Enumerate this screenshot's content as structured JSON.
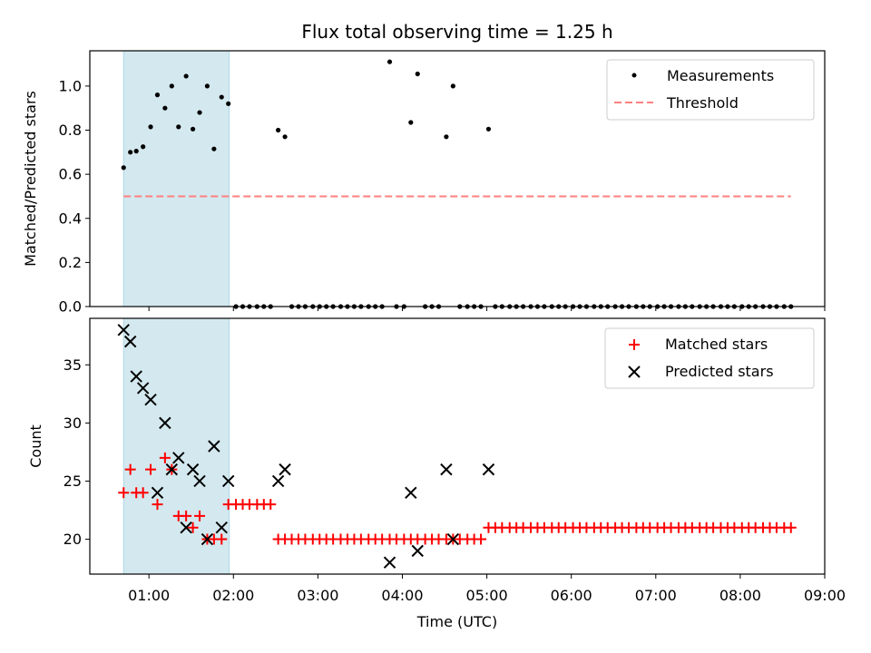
{
  "chart_data": [
    {
      "type": "scatter",
      "title": "Flux total observing time = 1.25 h",
      "xlabel": "",
      "ylabel": "Matched/Predicted stars",
      "ylim": [
        0,
        1.16
      ],
      "yticks": [
        0.0,
        0.2,
        0.4,
        0.6,
        0.8,
        1.0
      ],
      "ytick_labels": [
        "0.0",
        "0.2",
        "0.4",
        "0.6",
        "0.8",
        "1.0"
      ],
      "legend_position": "top-right",
      "shaded_span_hours": [
        0.7,
        1.95
      ],
      "shaded_color": "#d3e9ef",
      "series": [
        {
          "name": "Measurements",
          "kind": "points",
          "color": "#000000",
          "x": [
            0.7,
            0.78,
            0.85,
            0.93,
            1.02,
            1.1,
            1.19,
            1.27,
            1.35,
            1.44,
            1.52,
            1.6,
            1.69,
            1.77,
            1.86,
            1.94,
            2.03,
            2.11,
            2.19,
            2.28,
            2.36,
            2.44,
            2.53,
            2.61,
            2.69,
            2.77,
            2.85,
            2.94,
            3.02,
            3.1,
            3.18,
            3.27,
            3.35,
            3.43,
            3.51,
            3.6,
            3.68,
            3.76,
            3.85,
            3.93,
            4.02,
            4.1,
            4.18,
            4.27,
            4.35,
            4.43,
            4.52,
            4.6,
            4.68,
            4.77,
            4.85,
            4.93,
            5.02,
            5.1,
            5.18,
            5.27,
            5.35,
            5.43,
            5.52,
            5.6,
            5.68,
            5.77,
            5.85,
            5.93,
            6.02,
            6.1,
            6.18,
            6.27,
            6.35,
            6.43,
            6.52,
            6.6,
            6.68,
            6.77,
            6.85,
            6.93,
            7.02,
            7.1,
            7.18,
            7.27,
            7.35,
            7.43,
            7.52,
            7.6,
            7.68,
            7.77,
            7.85,
            7.93,
            8.02,
            8.1,
            8.18,
            8.27,
            8.35,
            8.43,
            8.52,
            8.6
          ],
          "y": [
            0.63,
            0.7,
            0.705,
            0.725,
            0.815,
            0.96,
            0.9,
            1.0,
            0.815,
            1.045,
            0.805,
            0.88,
            1.0,
            0.715,
            0.95,
            0.92,
            0,
            0,
            0,
            0,
            0,
            0,
            0.8,
            0.77,
            0,
            0,
            0,
            0,
            0,
            0,
            0,
            0,
            0,
            0,
            0,
            0,
            0,
            0,
            1.11,
            0,
            0,
            0.835,
            1.055,
            0,
            0,
            0,
            0.77,
            1.0,
            0,
            0,
            0,
            0,
            0.805,
            0,
            0,
            0,
            0,
            0,
            0,
            0,
            0,
            0,
            0,
            0,
            0,
            0,
            0,
            0,
            0,
            0,
            0,
            0,
            0,
            0,
            0,
            0,
            0,
            0,
            0,
            0,
            0,
            0,
            0,
            0,
            0,
            0,
            0,
            0,
            0,
            0,
            0,
            0,
            0,
            0,
            0,
            0
          ]
        },
        {
          "name": "Threshold",
          "kind": "dashed-line",
          "color": "#ff7f7f",
          "x": [
            0.7,
            8.6
          ],
          "y": [
            0.5,
            0.5
          ]
        }
      ]
    },
    {
      "type": "scatter",
      "title": "",
      "xlabel": "Time (UTC)",
      "ylabel": "Count",
      "xlim_hours": [
        0.3,
        9.0
      ],
      "xticks_hours": [
        1,
        2,
        3,
        4,
        5,
        6,
        7,
        8,
        9
      ],
      "xtick_labels": [
        "01:00",
        "02:00",
        "03:00",
        "04:00",
        "05:00",
        "06:00",
        "07:00",
        "08:00",
        "09:00"
      ],
      "ylim": [
        17,
        39
      ],
      "yticks": [
        20,
        25,
        30,
        35
      ],
      "ytick_labels": [
        "20",
        "25",
        "30",
        "35"
      ],
      "legend_position": "top-right",
      "series": [
        {
          "name": "Matched stars",
          "kind": "plus",
          "color": "#ff0000",
          "x": [
            0.7,
            0.78,
            0.85,
            0.93,
            1.02,
            1.1,
            1.19,
            1.27,
            1.35,
            1.44,
            1.52,
            1.6,
            1.69,
            1.77,
            1.86,
            1.94,
            2.03,
            2.11,
            2.19,
            2.28,
            2.36,
            2.44,
            2.53,
            2.61,
            2.69,
            2.77,
            2.85,
            2.94,
            3.02,
            3.1,
            3.18,
            3.27,
            3.35,
            3.43,
            3.51,
            3.6,
            3.68,
            3.76,
            3.85,
            3.93,
            4.02,
            4.1,
            4.18,
            4.27,
            4.35,
            4.43,
            4.52,
            4.6,
            4.68,
            4.77,
            4.85,
            4.93,
            5.02,
            5.1,
            5.18,
            5.27,
            5.35,
            5.43,
            5.52,
            5.6,
            5.68,
            5.77,
            5.85,
            5.93,
            6.02,
            6.1,
            6.18,
            6.27,
            6.35,
            6.43,
            6.52,
            6.6,
            6.68,
            6.77,
            6.85,
            6.93,
            7.02,
            7.1,
            7.18,
            7.27,
            7.35,
            7.43,
            7.52,
            7.6,
            7.68,
            7.77,
            7.85,
            7.93,
            8.02,
            8.1,
            8.18,
            8.27,
            8.35,
            8.43,
            8.52,
            8.6
          ],
          "y": [
            24,
            26,
            24,
            24,
            26,
            23,
            27,
            26,
            22,
            22,
            21,
            22,
            20,
            20,
            20,
            23,
            23,
            23,
            23,
            23,
            23,
            23,
            20,
            20,
            20,
            20,
            20,
            20,
            20,
            20,
            20,
            20,
            20,
            20,
            20,
            20,
            20,
            20,
            20,
            20,
            20,
            20,
            20,
            20,
            20,
            20,
            20,
            20,
            20,
            20,
            20,
            20,
            21,
            21,
            21,
            21,
            21,
            21,
            21,
            21,
            21,
            21,
            21,
            21,
            21,
            21,
            21,
            21,
            21,
            21,
            21,
            21,
            21,
            21,
            21,
            21,
            21,
            21,
            21,
            21,
            21,
            21,
            21,
            21,
            21,
            21,
            21,
            21,
            21,
            21,
            21,
            21,
            21,
            21,
            21,
            21
          ]
        },
        {
          "name": "Predicted stars",
          "kind": "x",
          "color": "#000000",
          "x": [
            0.7,
            0.78,
            0.85,
            0.93,
            1.02,
            1.1,
            1.19,
            1.27,
            1.35,
            1.44,
            1.52,
            1.6,
            1.69,
            1.77,
            1.86,
            1.94,
            2.53,
            2.61,
            3.85,
            4.1,
            4.18,
            4.52,
            4.6,
            5.02
          ],
          "y": [
            38,
            37,
            34,
            33,
            32,
            24,
            30,
            26,
            27,
            21,
            26,
            25,
            20,
            28,
            21,
            25,
            25,
            26,
            18,
            24,
            19,
            26,
            20,
            26
          ]
        }
      ]
    }
  ]
}
